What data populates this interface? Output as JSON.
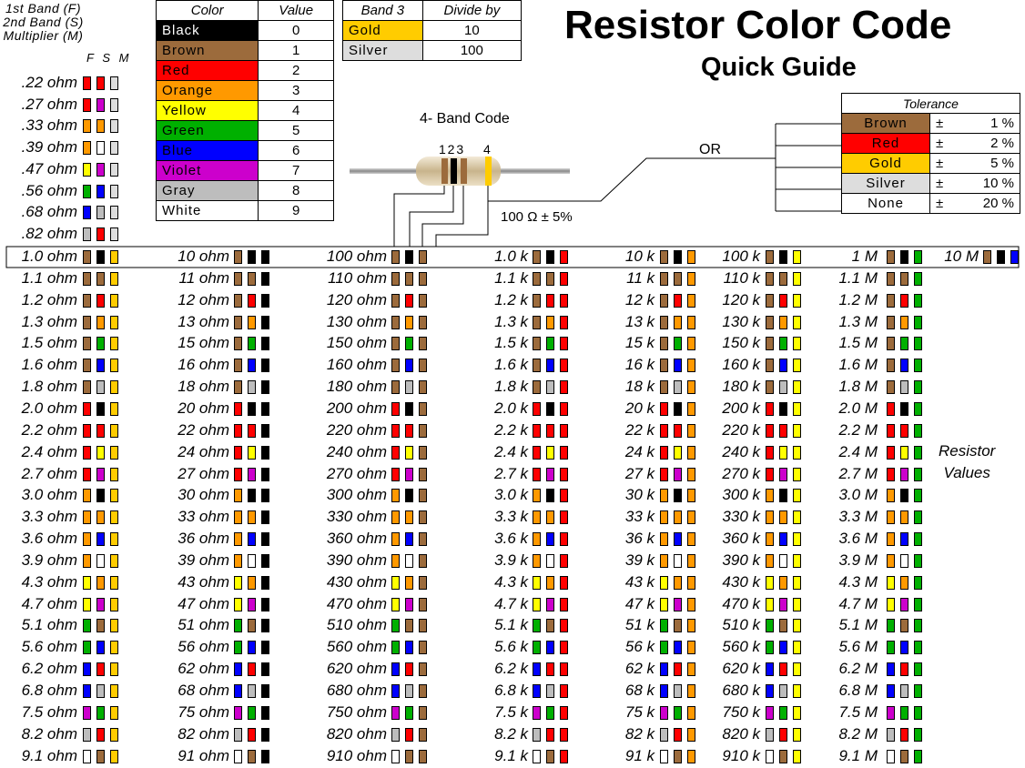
{
  "colors": {
    "Black": "#000000",
    "Brown": "#9c6b3c",
    "Red": "#ff0000",
    "Orange": "#ff9900",
    "Yellow": "#ffff00",
    "Green": "#00b000",
    "Blue": "#0000ff",
    "Violet": "#cc00cc",
    "Gray": "#bdbdbd",
    "White": "#ffffff",
    "Gold": "#ffcc00",
    "Silver": "#dddddd"
  },
  "header_note": [
    "1st Band (F)",
    "2nd Band (S)",
    "Multiplier (M)"
  ],
  "fsm_labels": "F S M",
  "color_table": {
    "headers": [
      "Color",
      "Value"
    ],
    "rows": [
      {
        "name": "Black",
        "value": "0",
        "color": "Black",
        "text": "#ffffff"
      },
      {
        "name": "Brown",
        "value": "1",
        "color": "Brown",
        "text": "#000000"
      },
      {
        "name": "Red",
        "value": "2",
        "color": "Red",
        "text": "#000000"
      },
      {
        "name": "Orange",
        "value": "3",
        "color": "Orange",
        "text": "#000000"
      },
      {
        "name": "Yellow",
        "value": "4",
        "color": "Yellow",
        "text": "#000000"
      },
      {
        "name": "Green",
        "value": "5",
        "color": "Green",
        "text": "#000000"
      },
      {
        "name": "Blue",
        "value": "6",
        "color": "Blue",
        "text": "#000000"
      },
      {
        "name": "Violet",
        "value": "7",
        "color": "Violet",
        "text": "#000000"
      },
      {
        "name": "Gray",
        "value": "8",
        "color": "Gray",
        "text": "#000000"
      },
      {
        "name": "White",
        "value": "9",
        "color": "White",
        "text": "#000000"
      }
    ]
  },
  "band3_table": {
    "headers": [
      "Band 3",
      "Divide by"
    ],
    "rows": [
      {
        "name": "Gold",
        "value": "10",
        "color": "Gold"
      },
      {
        "name": "Silver",
        "value": "100",
        "color": "Silver"
      }
    ]
  },
  "title": "Resistor Color Code",
  "subtitle": "Quick Guide",
  "diagram": {
    "label": "4- Band Code",
    "band_numbers": "1 2 3",
    "band4": "4",
    "value_label": "100 Ω ± 5%",
    "or_label": "OR"
  },
  "tolerance_table": {
    "header": "Tolerance",
    "rows": [
      {
        "name": "Brown",
        "sign": "±",
        "value": "1 %",
        "color": "Brown"
      },
      {
        "name": "Red",
        "sign": "±",
        "value": "2 %",
        "color": "Red"
      },
      {
        "name": "Gold",
        "sign": "±",
        "value": "5 %",
        "color": "Gold"
      },
      {
        "name": "Silver",
        "sign": "±",
        "value": "10 %",
        "color": "Silver"
      },
      {
        "name": "None",
        "sign": "±",
        "value": "20 %",
        "color": "White"
      }
    ]
  },
  "small_values": [
    {
      "label": ".22 ohm",
      "bands": [
        "Red",
        "Red",
        "Silver"
      ]
    },
    {
      "label": ".27 ohm",
      "bands": [
        "Red",
        "Violet",
        "Silver"
      ]
    },
    {
      "label": ".33 ohm",
      "bands": [
        "Orange",
        "Orange",
        "Silver"
      ]
    },
    {
      "label": ".39 ohm",
      "bands": [
        "Orange",
        "White",
        "Silver"
      ]
    },
    {
      "label": ".47 ohm",
      "bands": [
        "Yellow",
        "Violet",
        "Silver"
      ]
    },
    {
      "label": ".56 ohm",
      "bands": [
        "Green",
        "Blue",
        "Silver"
      ]
    },
    {
      "label": ".68 ohm",
      "bands": [
        "Blue",
        "Gray",
        "Silver"
      ]
    },
    {
      "label": ".82 ohm",
      "bands": [
        "Gray",
        "Red",
        "Silver"
      ]
    }
  ],
  "columns": [
    {
      "labels": [
        "1.0 ohm",
        "1.1 ohm",
        "1.2 ohm",
        "1.3 ohm",
        "1.5 ohm",
        "1.6 ohm",
        "1.8 ohm",
        "2.0 ohm",
        "2.2 ohm",
        "2.4 ohm",
        "2.7 ohm",
        "3.0 ohm",
        "3.3 ohm",
        "3.6 ohm",
        "3.9 ohm",
        "4.3 ohm",
        "4.7 ohm",
        "5.1 ohm",
        "5.6 ohm",
        "6.2 ohm",
        "6.8 ohm",
        "7.5 ohm",
        "8.2 ohm",
        "9.1 ohm"
      ],
      "multiplier": "Gold"
    },
    {
      "labels": [
        "10 ohm",
        "11 ohm",
        "12 ohm",
        "13 ohm",
        "15 ohm",
        "16 ohm",
        "18 ohm",
        "20 ohm",
        "22 ohm",
        "24 ohm",
        "27 ohm",
        "30 ohm",
        "33 ohm",
        "36 ohm",
        "39 ohm",
        "43 ohm",
        "47 ohm",
        "51 ohm",
        "56 ohm",
        "62 ohm",
        "68 ohm",
        "75 ohm",
        "82 ohm",
        "91 ohm"
      ],
      "multiplier": "Black"
    },
    {
      "labels": [
        "100 ohm",
        "110 ohm",
        "120 ohm",
        "130 ohm",
        "150 ohm",
        "160 ohm",
        "180 ohm",
        "200 ohm",
        "220 ohm",
        "240 ohm",
        "270 ohm",
        "300 ohm",
        "330 ohm",
        "360 ohm",
        "390 ohm",
        "430 ohm",
        "470 ohm",
        "510 ohm",
        "560 ohm",
        "620 ohm",
        "680 ohm",
        "750 ohm",
        "820 ohm",
        "910 ohm"
      ],
      "multiplier": "Brown"
    },
    {
      "labels": [
        "1.0 k",
        "1.1 k",
        "1.2 k",
        "1.3 k",
        "1.5 k",
        "1.6 k",
        "1.8 k",
        "2.0 k",
        "2.2 k",
        "2.4 k",
        "2.7 k",
        "3.0 k",
        "3.3 k",
        "3.6 k",
        "3.9 k",
        "4.3 k",
        "4.7 k",
        "5.1 k",
        "5.6 k",
        "6.2 k",
        "6.8 k",
        "7.5 k",
        "8.2 k",
        "9.1 k"
      ],
      "multiplier": "Red"
    },
    {
      "labels": [
        "10 k",
        "11 k",
        "12 k",
        "13 k",
        "15 k",
        "16 k",
        "18 k",
        "20 k",
        "22 k",
        "24 k",
        "27 k",
        "30 k",
        "33 k",
        "36 k",
        "39 k",
        "43 k",
        "47 k",
        "51 k",
        "56 k",
        "62 k",
        "68 k",
        "75 k",
        "82 k",
        "91 k"
      ],
      "multiplier": "Orange"
    },
    {
      "labels": [
        "100 k",
        "110 k",
        "120 k",
        "130 k",
        "150 k",
        "160 k",
        "180 k",
        "200 k",
        "220 k",
        "240 k",
        "270 k",
        "300 k",
        "330 k",
        "360 k",
        "390 k",
        "430 k",
        "470 k",
        "510 k",
        "560 k",
        "620 k",
        "680 k",
        "750 k",
        "820 k",
        "910 k"
      ],
      "multiplier": "Yellow"
    },
    {
      "labels": [
        "1 M",
        "1.1 M",
        "1.2 M",
        "1.3 M",
        "1.5 M",
        "1.6 M",
        "1.8 M",
        "2.0 M",
        "2.2 M",
        "2.4 M",
        "2.7 M",
        "3.0 M",
        "3.3 M",
        "3.6 M",
        "3.9 M",
        "4.3 M",
        "4.7 M",
        "5.1 M",
        "5.6 M",
        "6.2 M",
        "6.8 M",
        "7.5 M",
        "8.2 M",
        "9.1 M"
      ],
      "multiplier": "Green"
    }
  ],
  "digit_pairs": [
    [
      "Brown",
      "Black"
    ],
    [
      "Brown",
      "Brown"
    ],
    [
      "Brown",
      "Red"
    ],
    [
      "Brown",
      "Orange"
    ],
    [
      "Brown",
      "Green"
    ],
    [
      "Brown",
      "Blue"
    ],
    [
      "Brown",
      "Gray"
    ],
    [
      "Red",
      "Black"
    ],
    [
      "Red",
      "Red"
    ],
    [
      "Red",
      "Yellow"
    ],
    [
      "Red",
      "Violet"
    ],
    [
      "Orange",
      "Black"
    ],
    [
      "Orange",
      "Orange"
    ],
    [
      "Orange",
      "Blue"
    ],
    [
      "Orange",
      "White"
    ],
    [
      "Yellow",
      "Orange"
    ],
    [
      "Yellow",
      "Violet"
    ],
    [
      "Green",
      "Brown"
    ],
    [
      "Green",
      "Blue"
    ],
    [
      "Blue",
      "Red"
    ],
    [
      "Blue",
      "Gray"
    ],
    [
      "Violet",
      "Green"
    ],
    [
      "Gray",
      "Red"
    ],
    [
      "White",
      "Brown"
    ]
  ],
  "ten_meg": {
    "label": "10 M",
    "bands": [
      "Brown",
      "Black",
      "Blue"
    ]
  },
  "side_label": [
    "Resistor",
    "Values"
  ]
}
